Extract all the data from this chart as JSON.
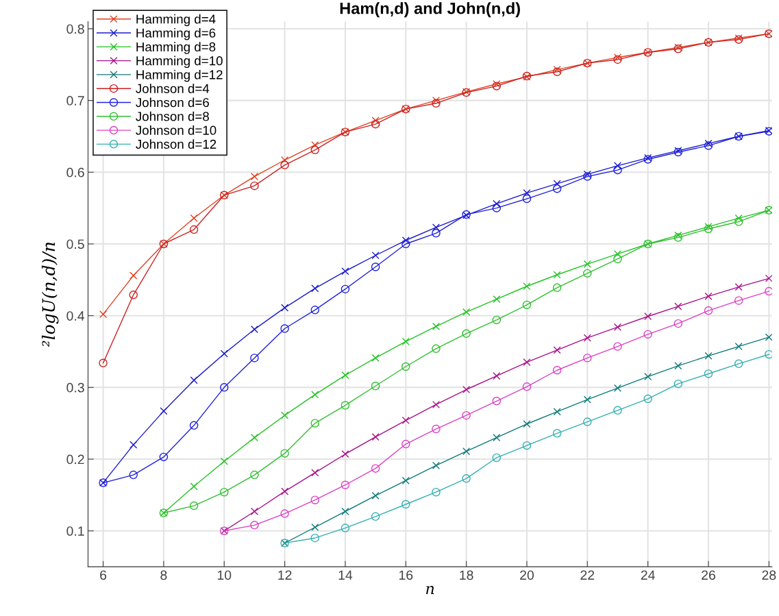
{
  "chart_data": {
    "type": "line",
    "title": "Ham(n,d) and John(n,d)",
    "xlabel": "n",
    "ylabel": "²logU(n,d)/n",
    "xlim": [
      5.5,
      28.1
    ],
    "ylim": [
      0.05,
      0.81
    ],
    "xticks": [
      6,
      8,
      10,
      12,
      14,
      16,
      18,
      20,
      22,
      24,
      26,
      28
    ],
    "yticks": [
      0.1,
      0.2,
      0.3,
      0.4,
      0.5,
      0.6,
      0.7,
      0.8
    ],
    "grid": true,
    "legend": "top left",
    "line_style": "solid",
    "series": [
      {
        "name": "Hamming d=4",
        "color": "#e04020",
        "marker": "cross",
        "x": [
          6,
          7,
          8,
          9,
          10,
          11,
          12,
          13,
          14,
          15,
          16,
          17,
          18,
          19,
          20,
          21,
          22,
          23,
          24,
          25,
          26,
          27,
          28
        ],
        "values": [
          0.402,
          0.456,
          0.5,
          0.536,
          0.568,
          0.594,
          0.617,
          0.638,
          0.656,
          0.672,
          0.688,
          0.7,
          0.712,
          0.723,
          0.733,
          0.743,
          0.752,
          0.76,
          0.767,
          0.774,
          0.781,
          0.787,
          0.793
        ]
      },
      {
        "name": "Hamming d=6",
        "color": "#1a1acc",
        "marker": "cross",
        "x": [
          6,
          7,
          8,
          9,
          10,
          11,
          12,
          13,
          14,
          15,
          16,
          17,
          18,
          19,
          20,
          21,
          22,
          23,
          24,
          25,
          26,
          27,
          28
        ],
        "values": [
          0.167,
          0.22,
          0.267,
          0.31,
          0.347,
          0.381,
          0.411,
          0.438,
          0.462,
          0.484,
          0.505,
          0.523,
          0.54,
          0.556,
          0.571,
          0.584,
          0.597,
          0.609,
          0.62,
          0.63,
          0.64,
          0.65,
          0.658
        ]
      },
      {
        "name": "Hamming d=8",
        "color": "#22c322",
        "marker": "cross",
        "x": [
          8,
          9,
          10,
          11,
          12,
          13,
          14,
          15,
          16,
          17,
          18,
          19,
          20,
          21,
          22,
          23,
          24,
          25,
          26,
          27,
          28
        ],
        "values": [
          0.125,
          0.162,
          0.197,
          0.23,
          0.261,
          0.29,
          0.317,
          0.341,
          0.364,
          0.385,
          0.405,
          0.423,
          0.441,
          0.457,
          0.472,
          0.486,
          0.5,
          0.512,
          0.524,
          0.536,
          0.547
        ]
      },
      {
        "name": "Hamming d=10",
        "color": "#a8108a",
        "marker": "cross",
        "x": [
          10,
          11,
          12,
          13,
          14,
          15,
          16,
          17,
          18,
          19,
          20,
          21,
          22,
          23,
          24,
          25,
          26,
          27,
          28
        ],
        "values": [
          0.1,
          0.127,
          0.155,
          0.181,
          0.207,
          0.231,
          0.254,
          0.276,
          0.297,
          0.316,
          0.335,
          0.352,
          0.369,
          0.384,
          0.399,
          0.413,
          0.427,
          0.44,
          0.452
        ]
      },
      {
        "name": "Hamming d=12",
        "color": "#0e7a7a",
        "marker": "cross",
        "x": [
          12,
          13,
          14,
          15,
          16,
          17,
          18,
          19,
          20,
          21,
          22,
          23,
          24,
          25,
          26,
          27,
          28
        ],
        "values": [
          0.083,
          0.105,
          0.127,
          0.149,
          0.17,
          0.191,
          0.211,
          0.23,
          0.249,
          0.266,
          0.283,
          0.299,
          0.315,
          0.33,
          0.344,
          0.357,
          0.37
        ]
      },
      {
        "name": "Johnson d=4",
        "color": "#cc2020",
        "marker": "circle",
        "x": [
          6,
          7,
          8,
          9,
          10,
          11,
          12,
          13,
          14,
          15,
          16,
          17,
          18,
          19,
          20,
          21,
          22,
          23,
          24,
          25,
          26,
          27,
          28
        ],
        "values": [
          0.334,
          0.429,
          0.5,
          0.52,
          0.568,
          0.581,
          0.61,
          0.631,
          0.656,
          0.667,
          0.688,
          0.696,
          0.711,
          0.72,
          0.734,
          0.74,
          0.752,
          0.757,
          0.767,
          0.772,
          0.781,
          0.785,
          0.793
        ]
      },
      {
        "name": "Johnson d=6",
        "color": "#2020dd",
        "marker": "circle",
        "x": [
          6,
          7,
          8,
          9,
          10,
          11,
          12,
          13,
          14,
          15,
          16,
          17,
          18,
          19,
          20,
          21,
          22,
          23,
          24,
          25,
          26,
          27,
          28
        ],
        "values": [
          0.167,
          0.178,
          0.203,
          0.247,
          0.3,
          0.341,
          0.382,
          0.408,
          0.437,
          0.468,
          0.5,
          0.515,
          0.541,
          0.55,
          0.563,
          0.577,
          0.594,
          0.603,
          0.618,
          0.628,
          0.637,
          0.65,
          0.657
        ]
      },
      {
        "name": "Johnson d=8",
        "color": "#30c030",
        "marker": "circle",
        "x": [
          8,
          9,
          10,
          11,
          12,
          13,
          14,
          15,
          16,
          17,
          18,
          19,
          20,
          21,
          22,
          23,
          24,
          25,
          26,
          27,
          28
        ],
        "values": [
          0.125,
          0.135,
          0.154,
          0.178,
          0.208,
          0.25,
          0.275,
          0.302,
          0.329,
          0.354,
          0.375,
          0.394,
          0.415,
          0.439,
          0.459,
          0.479,
          0.5,
          0.509,
          0.521,
          0.531,
          0.547
        ]
      },
      {
        "name": "Johnson d=10",
        "color": "#dc40c4",
        "marker": "circle",
        "x": [
          10,
          11,
          12,
          13,
          14,
          15,
          16,
          17,
          18,
          19,
          20,
          21,
          22,
          23,
          24,
          25,
          26,
          27,
          28
        ],
        "values": [
          0.1,
          0.108,
          0.124,
          0.143,
          0.164,
          0.187,
          0.221,
          0.242,
          0.261,
          0.281,
          0.301,
          0.324,
          0.341,
          0.357,
          0.374,
          0.389,
          0.407,
          0.421,
          0.434
        ]
      },
      {
        "name": "Johnson d=12",
        "color": "#34b0b0",
        "marker": "circle",
        "x": [
          12,
          13,
          14,
          15,
          16,
          17,
          18,
          19,
          20,
          21,
          22,
          23,
          24,
          25,
          26,
          27,
          28
        ],
        "values": [
          0.083,
          0.09,
          0.104,
          0.12,
          0.137,
          0.154,
          0.173,
          0.202,
          0.219,
          0.236,
          0.252,
          0.268,
          0.284,
          0.305,
          0.319,
          0.333,
          0.346
        ]
      }
    ]
  }
}
